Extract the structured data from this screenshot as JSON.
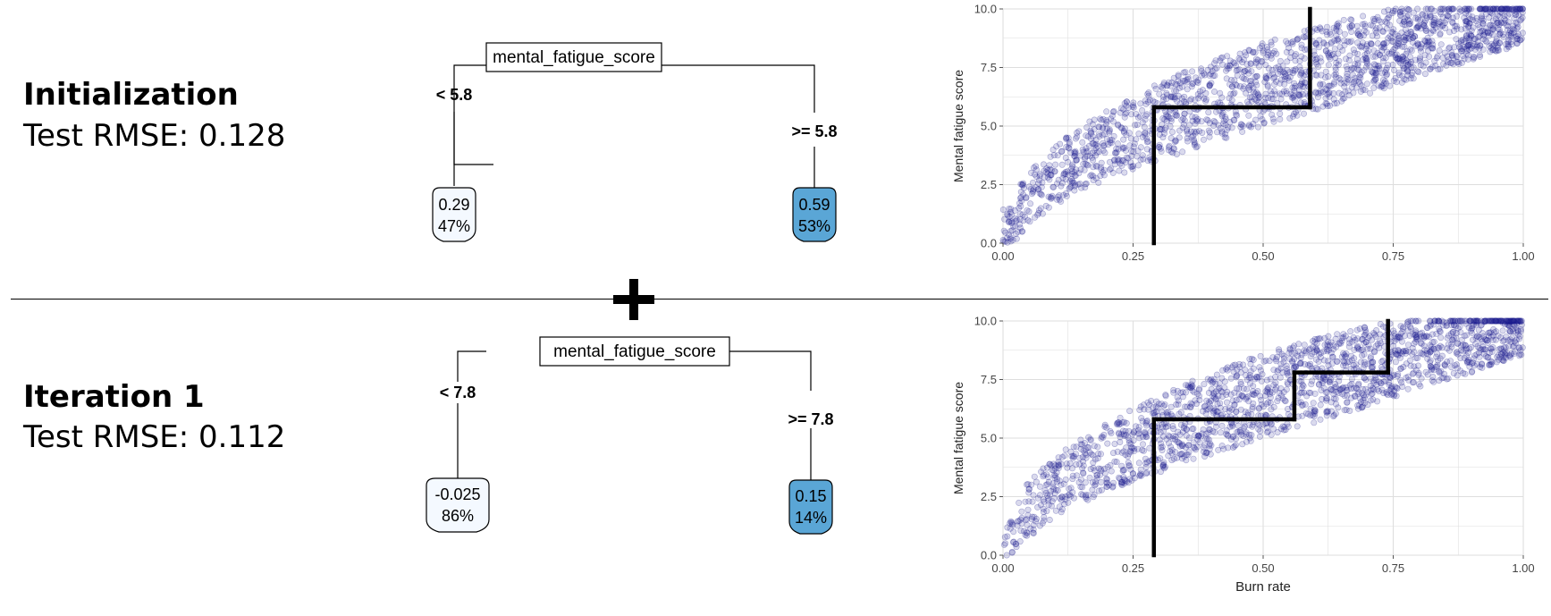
{
  "rows": [
    {
      "title": "Initialization",
      "rmse": "Test RMSE: 0.128",
      "tree": {
        "root": "mental_fatigue_score",
        "left_split": "< 5.8",
        "right_split": ">= 5.8",
        "left_leaf": {
          "value": "0.29",
          "pct": "47%"
        },
        "right_leaf": {
          "value": "0.59",
          "pct": "53%"
        }
      },
      "chart_data": {
        "type": "scatter",
        "xlabel": "",
        "ylabel": "Mental fatigue score",
        "xlim": [
          0,
          1
        ],
        "ylim": [
          0,
          10
        ],
        "xticks": [
          "0.00",
          "0.25",
          "0.50",
          "0.75",
          "1.00"
        ],
        "yticks": [
          "0.0",
          "2.5",
          "5.0",
          "7.5",
          "10.0"
        ],
        "point_color": "#1a1a8c",
        "grid": true,
        "partition_lines": [
          [
            [
              0.29,
              0
            ],
            [
              0.29,
              5.8
            ]
          ],
          [
            [
              0.29,
              5.8
            ],
            [
              0.59,
              5.8
            ]
          ],
          [
            [
              0.59,
              5.8
            ],
            [
              0.59,
              10
            ]
          ]
        ]
      }
    },
    {
      "title": "Iteration 1",
      "rmse": "Test RMSE: 0.112",
      "tree": {
        "root": "mental_fatigue_score",
        "left_split": "< 7.8",
        "right_split": ">= 7.8",
        "left_leaf": {
          "value": "-0.025",
          "pct": "86%"
        },
        "right_leaf": {
          "value": "0.15",
          "pct": "14%"
        }
      },
      "chart_data": {
        "type": "scatter",
        "xlabel": "Burn rate",
        "ylabel": "Mental fatigue score",
        "xlim": [
          0,
          1
        ],
        "ylim": [
          0,
          10
        ],
        "xticks": [
          "0.00",
          "0.25",
          "0.50",
          "0.75",
          "1.00"
        ],
        "yticks": [
          "0.0",
          "2.5",
          "5.0",
          "7.5",
          "10.0"
        ],
        "point_color": "#1a1a8c",
        "grid": true,
        "partition_lines": [
          [
            [
              0.29,
              0
            ],
            [
              0.29,
              5.8
            ]
          ],
          [
            [
              0.29,
              5.8
            ],
            [
              0.56,
              5.8
            ]
          ],
          [
            [
              0.56,
              5.8
            ],
            [
              0.56,
              7.8
            ]
          ],
          [
            [
              0.56,
              7.8
            ],
            [
              0.74,
              7.8
            ]
          ],
          [
            [
              0.74,
              7.8
            ],
            [
              0.74,
              10
            ]
          ]
        ]
      }
    }
  ],
  "colors": {
    "leaf_low": "#f4f9ff",
    "leaf_high": "#5aa6d6",
    "grid": "#dedede",
    "border": "#999999"
  }
}
